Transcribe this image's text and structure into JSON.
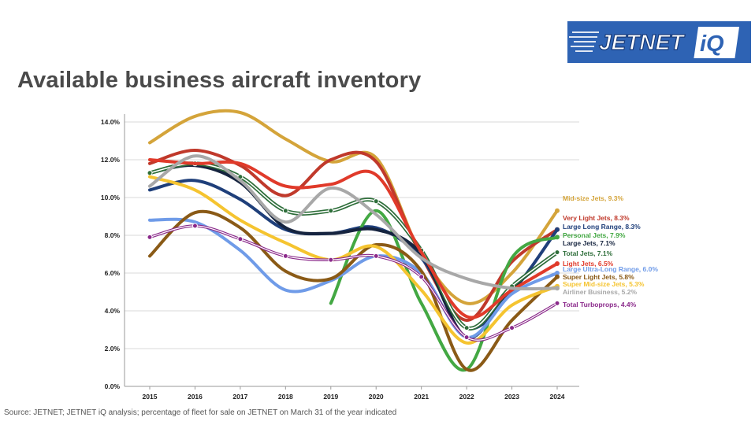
{
  "logo": {
    "text": "JETNET",
    "badge": "iQ"
  },
  "source_text": "Source: JETNET; JETNET iQ analysis; percentage of fleet for sale on JETNET on March 31 of the year indicated",
  "chart_data": {
    "type": "line",
    "title": "Available business aircraft inventory",
    "xlabel": "",
    "ylabel": "",
    "x": [
      "2015",
      "2016",
      "2017",
      "2018",
      "2019",
      "2020",
      "2021",
      "2022",
      "2023",
      "2024"
    ],
    "ylim": [
      0,
      14
    ],
    "yticks": [
      "0.0%",
      "2.0%",
      "4.0%",
      "6.0%",
      "8.0%",
      "10.0%",
      "12.0%",
      "14.0%"
    ],
    "grid": true,
    "series": [
      {
        "name": "Mid-size Jets",
        "label": "Mid-size Jets, 9.3%",
        "color": "#d4a43a",
        "values": [
          12.9,
          14.3,
          14.5,
          13.1,
          11.9,
          12.1,
          7.0,
          4.4,
          6.0,
          9.3
        ]
      },
      {
        "name": "Very Light Jets",
        "label": "Very Light Jets, 8.3%",
        "color": "#c0392b",
        "values": [
          11.8,
          12.5,
          11.7,
          10.1,
          12.0,
          11.9,
          6.9,
          3.5,
          6.6,
          8.3
        ]
      },
      {
        "name": "Large Long Range",
        "label": "Large Long Range, 8.3%",
        "color": "#1f3f7a",
        "values": [
          10.4,
          10.9,
          9.9,
          8.3,
          8.1,
          8.4,
          6.8,
          3.1,
          5.0,
          8.3
        ]
      },
      {
        "name": "Personal Jets",
        "label": "Personal Jets, 7.9%",
        "color": "#43a843",
        "values": [
          null,
          null,
          null,
          null,
          4.4,
          9.3,
          4.4,
          0.9,
          6.8,
          7.9
        ]
      },
      {
        "name": "Large Jets",
        "label": "Large Jets, 7.1%",
        "color": "#16243f",
        "values": [
          11.3,
          11.7,
          10.8,
          8.4,
          8.1,
          8.3,
          7.0,
          2.6,
          5.2,
          7.1
        ]
      },
      {
        "name": "Total Jets",
        "label": "Total Jets, 7.1%",
        "color": "#2e6e3a",
        "values": [
          11.3,
          11.8,
          11.1,
          9.3,
          9.3,
          9.8,
          7.2,
          3.1,
          5.3,
          7.1
        ]
      },
      {
        "name": "Light Jets",
        "label": "Light Jets, 6.5%",
        "color": "#e03a2a",
        "values": [
          12.0,
          11.8,
          11.8,
          10.6,
          10.7,
          11.2,
          7.1,
          3.7,
          5.1,
          6.5
        ]
      },
      {
        "name": "Large Ultra-Long Range",
        "label": "Large Ultra-Long Range, 6.0%",
        "color": "#6f9be8",
        "values": [
          8.8,
          8.7,
          7.2,
          5.1,
          5.6,
          6.9,
          6.0,
          2.6,
          4.9,
          6.0
        ]
      },
      {
        "name": "Super Light Jets",
        "label": "Super Light Jets, 5.8%",
        "color": "#8a5a16",
        "values": [
          6.9,
          9.2,
          8.4,
          6.1,
          5.7,
          7.5,
          6.1,
          0.9,
          3.5,
          5.8
        ]
      },
      {
        "name": "Super Mid-size Jets",
        "label": "Super Mid-size Jets, 5.3%",
        "color": "#f5c430",
        "values": [
          11.1,
          10.4,
          8.8,
          7.6,
          6.7,
          7.4,
          5.1,
          2.3,
          4.3,
          5.3
        ]
      },
      {
        "name": "Airliner Business",
        "label": "Airliner Business, 5.2%",
        "color": "#a8a8a8",
        "values": [
          10.6,
          12.2,
          10.9,
          8.7,
          10.5,
          9.1,
          6.8,
          5.7,
          5.2,
          5.2
        ]
      },
      {
        "name": "Total Turboprops",
        "label": "Total Turboprops, 4.4%",
        "color": "#8b2a8b",
        "values": [
          7.9,
          8.5,
          7.8,
          6.9,
          6.7,
          6.9,
          5.8,
          2.6,
          3.1,
          4.4
        ]
      }
    ]
  }
}
